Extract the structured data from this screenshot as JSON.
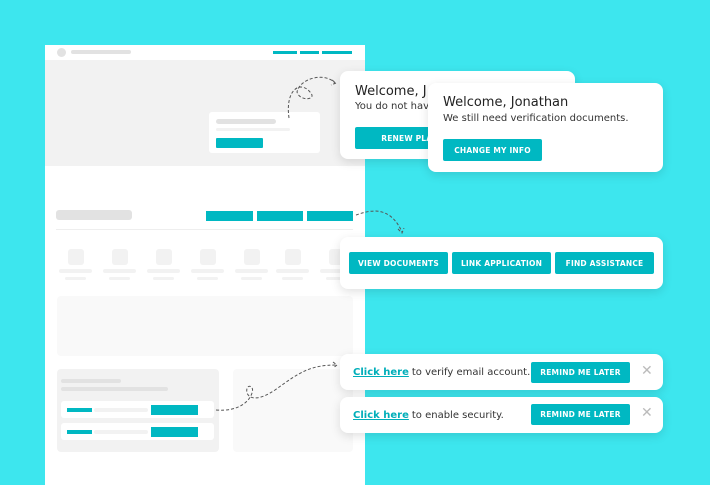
{
  "colors": {
    "background": "#3de6ee",
    "accent": "#00b8c2"
  },
  "card_renew": {
    "title": "Welcome, J",
    "text": "You do not hav",
    "button": "RENEW PLAN"
  },
  "card_change": {
    "title": "Welcome, Jonathan",
    "text": "We still need verification documents.",
    "button": "CHANGE MY INFO"
  },
  "actions": {
    "buttons": [
      "VIEW DOCUMENTS",
      "LINK APPLICATION",
      "FIND ASSISTANCE"
    ]
  },
  "notifications": [
    {
      "link": "Click here",
      "text": "to verify email account.",
      "button": "REMIND ME LATER",
      "close_icon": "close-icon"
    },
    {
      "link": "Click here",
      "text": "to enable security.",
      "button": "REMIND ME LATER",
      "close_icon": "close-icon"
    }
  ]
}
